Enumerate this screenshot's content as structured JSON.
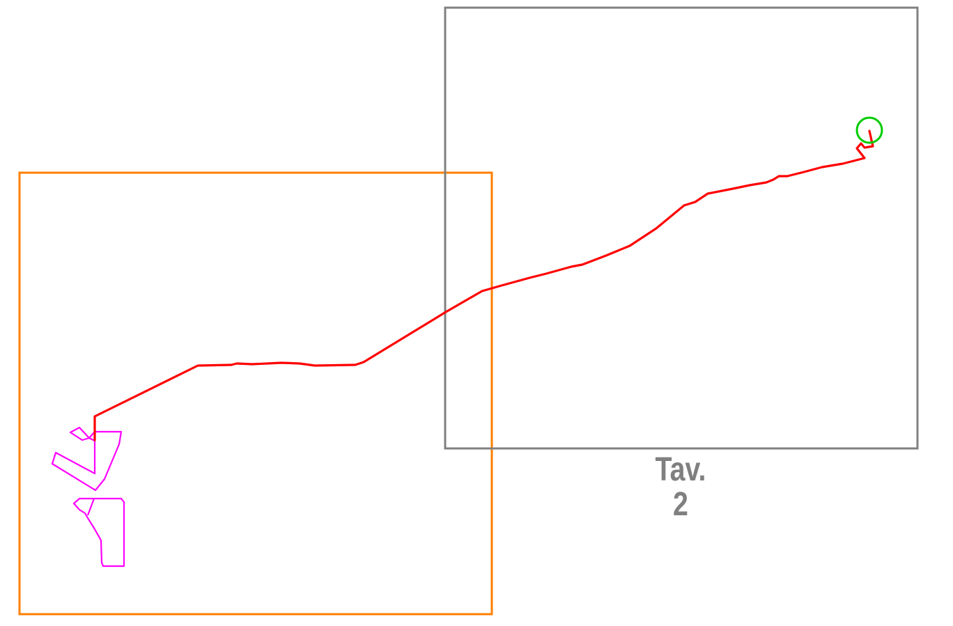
{
  "map": {
    "sheet_label": {
      "line1": "Tav.",
      "line2": "2"
    },
    "colors": {
      "background": "#ffffff",
      "sheet_frame": "#808080",
      "sheet_label": "#808080",
      "area_frame": "#ff7f00",
      "route": "#ff0000",
      "parcels": "#ff00ff",
      "endpoint_marker": "#00cc00"
    },
    "features": {
      "route": "route-line",
      "parcels": [
        "parcel-north",
        "parcel-south"
      ],
      "endpoint": "endpoint-circle"
    }
  }
}
